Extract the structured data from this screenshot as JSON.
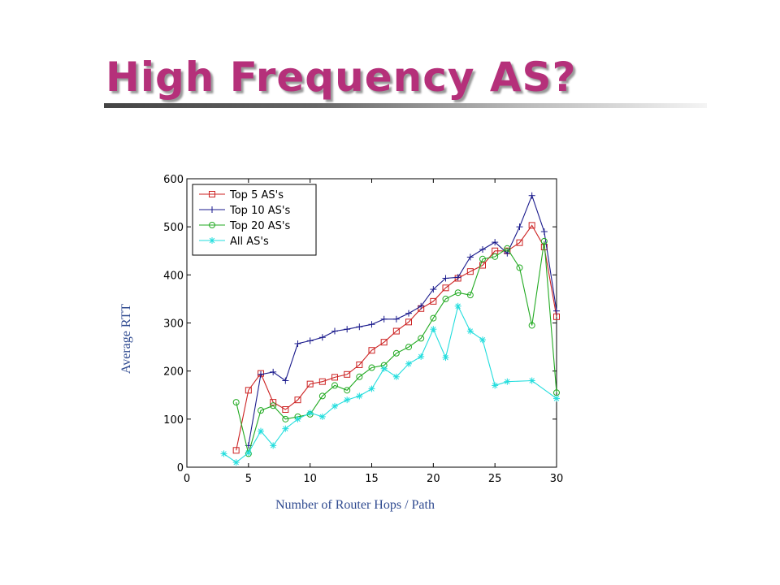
{
  "slide": {
    "title": "High Frequency AS?"
  },
  "chart_data": {
    "type": "line",
    "title": "",
    "xlabel": "Number of Router Hops / Path",
    "ylabel": "Average RTT",
    "xlim": [
      0,
      30
    ],
    "ylim": [
      0,
      600
    ],
    "xticks": [
      0,
      5,
      10,
      15,
      20,
      25,
      30
    ],
    "yticks": [
      0,
      100,
      200,
      300,
      400,
      500,
      600
    ],
    "grid": false,
    "legend_position": "top-left",
    "series": [
      {
        "name": "Top 5 AS's",
        "color": "#cc2222",
        "marker": "square",
        "points": [
          [
            4,
            35
          ],
          [
            5,
            160
          ],
          [
            6,
            195
          ],
          [
            7,
            135
          ],
          [
            8,
            120
          ],
          [
            9,
            140
          ],
          [
            10,
            173
          ],
          [
            11,
            178
          ],
          [
            12,
            187
          ],
          [
            13,
            193
          ],
          [
            14,
            213
          ],
          [
            15,
            243
          ],
          [
            16,
            260
          ],
          [
            17,
            283
          ],
          [
            18,
            302
          ],
          [
            19,
            330
          ],
          [
            20,
            345
          ],
          [
            21,
            373
          ],
          [
            22,
            393
          ],
          [
            23,
            407
          ],
          [
            24,
            420
          ],
          [
            25,
            450
          ],
          [
            26,
            450
          ],
          [
            27,
            467
          ],
          [
            28,
            503
          ],
          [
            29,
            458
          ],
          [
            30,
            313
          ]
        ]
      },
      {
        "name": "Top 10 AS's",
        "color": "#1a1a8c",
        "marker": "plus",
        "points": [
          [
            5,
            45
          ],
          [
            6,
            193
          ],
          [
            7,
            198
          ],
          [
            8,
            180
          ],
          [
            9,
            257
          ],
          [
            10,
            263
          ],
          [
            11,
            270
          ],
          [
            12,
            283
          ],
          [
            13,
            287
          ],
          [
            14,
            292
          ],
          [
            15,
            297
          ],
          [
            16,
            308
          ],
          [
            17,
            308
          ],
          [
            18,
            320
          ],
          [
            19,
            335
          ],
          [
            20,
            370
          ],
          [
            21,
            393
          ],
          [
            22,
            395
          ],
          [
            23,
            437
          ],
          [
            24,
            453
          ],
          [
            25,
            468
          ],
          [
            26,
            445
          ],
          [
            27,
            500
          ],
          [
            28,
            565
          ],
          [
            29,
            490
          ],
          [
            30,
            325
          ]
        ]
      },
      {
        "name": "Top 20 AS's",
        "color": "#22aa22",
        "marker": "circle",
        "points": [
          [
            4,
            135
          ],
          [
            5,
            28
          ],
          [
            6,
            118
          ],
          [
            7,
            128
          ],
          [
            8,
            100
          ],
          [
            9,
            105
          ],
          [
            10,
            110
          ],
          [
            11,
            148
          ],
          [
            12,
            170
          ],
          [
            13,
            160
          ],
          [
            14,
            188
          ],
          [
            15,
            207
          ],
          [
            16,
            212
          ],
          [
            17,
            237
          ],
          [
            18,
            250
          ],
          [
            19,
            268
          ],
          [
            20,
            310
          ],
          [
            21,
            350
          ],
          [
            22,
            363
          ],
          [
            23,
            358
          ],
          [
            24,
            433
          ],
          [
            25,
            438
          ],
          [
            26,
            455
          ],
          [
            27,
            415
          ],
          [
            28,
            295
          ],
          [
            29,
            470
          ],
          [
            30,
            155
          ]
        ]
      },
      {
        "name": "All AS's",
        "color": "#22dddd",
        "marker": "asterisk",
        "points": [
          [
            3,
            28
          ],
          [
            4,
            10
          ],
          [
            5,
            30
          ],
          [
            6,
            75
          ],
          [
            7,
            45
          ],
          [
            8,
            80
          ],
          [
            9,
            100
          ],
          [
            10,
            113
          ],
          [
            11,
            105
          ],
          [
            12,
            127
          ],
          [
            13,
            140
          ],
          [
            14,
            148
          ],
          [
            15,
            163
          ],
          [
            16,
            205
          ],
          [
            17,
            188
          ],
          [
            18,
            215
          ],
          [
            19,
            230
          ],
          [
            20,
            287
          ],
          [
            21,
            228
          ],
          [
            22,
            335
          ],
          [
            23,
            283
          ],
          [
            24,
            265
          ],
          [
            25,
            170
          ],
          [
            26,
            178
          ],
          [
            28,
            180
          ],
          [
            30,
            143
          ]
        ]
      }
    ]
  }
}
